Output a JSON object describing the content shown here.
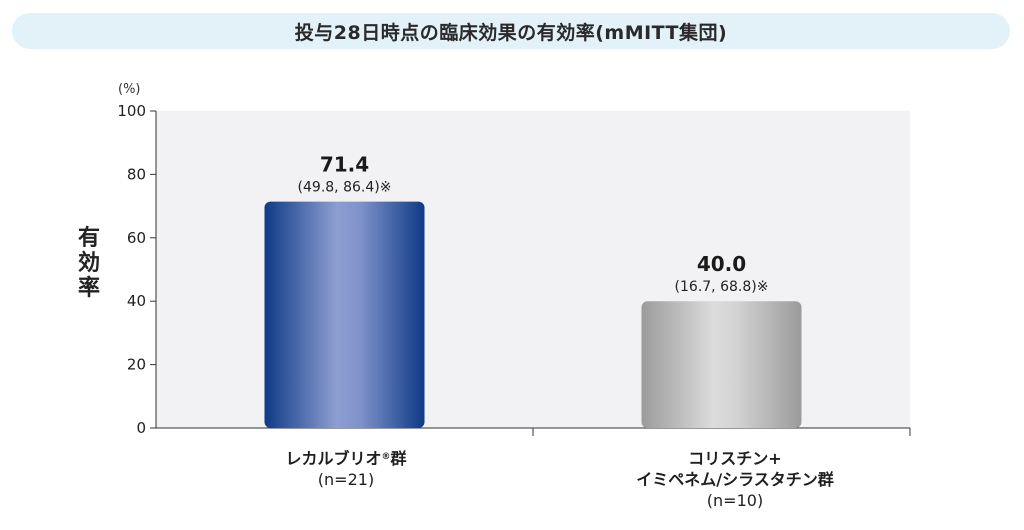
{
  "title": "投与28日時点の臨床効果の有効率(mMITT集団)",
  "unit": "(%)",
  "ylabel": "有効率",
  "colors": {
    "blue_dark": "#123b82",
    "blue_light": "#8c9dd0",
    "gray_dark": "#9a9a9a",
    "gray_light": "#d9d9d9",
    "plot_bg": "#f2f2f4"
  },
  "categories": [
    {
      "name": "レカルブリオ",
      "mark": "®",
      "suffix": "群",
      "n": "(n=21)"
    },
    {
      "name_line1": "コリスチン+",
      "name_line2": "イミペネム/シラスタチン群",
      "n": "(n=10)"
    }
  ],
  "chart_data": {
    "type": "bar",
    "title": "投与28日時点の臨床効果の有効率(mMITT集団)",
    "ylabel": "有効率",
    "unit": "(%)",
    "ylim": [
      0,
      100
    ],
    "yticks": [
      0,
      20,
      40,
      60,
      80,
      100
    ],
    "categories": [
      "レカルブリオ®群 (n=21)",
      "コリスチン+イミペネム/シラスタチン群 (n=10)"
    ],
    "values": [
      71.4,
      40.0
    ],
    "value_labels": [
      "71.4",
      "40.0"
    ],
    "ci_labels": [
      "(49.8, 86.4)※",
      "(16.7, 68.8)※"
    ],
    "grid": false
  }
}
